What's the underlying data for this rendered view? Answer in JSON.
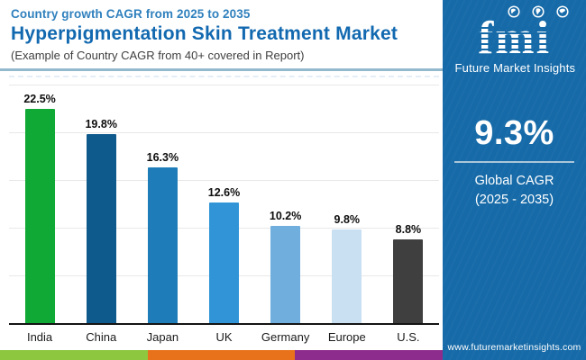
{
  "header": {
    "subtitle": "Country growth CAGR from 2025 to 2035",
    "title": "Hyperpigmentation Skin Treatment Market",
    "note": "(Example of Country CAGR from 40+ covered in Report)"
  },
  "chart_data": {
    "type": "bar",
    "categories": [
      "India",
      "China",
      "Japan",
      "UK",
      "Germany",
      "Europe",
      "U.S."
    ],
    "values": [
      22.5,
      19.8,
      16.3,
      12.6,
      10.2,
      9.8,
      8.8
    ],
    "value_labels": [
      "22.5%",
      "19.8%",
      "16.3%",
      "12.6%",
      "10.2%",
      "9.8%",
      "8.8%"
    ],
    "bar_colors": [
      "#10a935",
      "#0f5a8d",
      "#1e7cb8",
      "#3094d6",
      "#70aedd",
      "#c9e0f2",
      "#3f3f3f"
    ],
    "title": "Hyperpigmentation Skin Treatment Market — Country growth CAGR from 2025 to 2035",
    "xlabel": "",
    "ylabel": "",
    "ylim": [
      0,
      25
    ],
    "gridlines_percent": [
      5,
      10,
      15,
      20,
      25
    ],
    "grid": "horizontal",
    "legend": "none"
  },
  "side_panel": {
    "bg_color": "#166aa8",
    "logo_text": "fmi",
    "logo_tagline": "Future Market Insights",
    "stat_value": "9.3%",
    "stat_label_line1": "Global CAGR",
    "stat_label_line2": "(2025 - 2035)",
    "website": "www.futuremarketinsights.com"
  },
  "footer_strip_colors": [
    "#8dc63f",
    "#e8721b",
    "#8e2c8e"
  ],
  "accent_colors": {
    "header_subtitle": "#2f80bd",
    "header_title": "#1269b0",
    "header_border": "#93b9cc"
  }
}
